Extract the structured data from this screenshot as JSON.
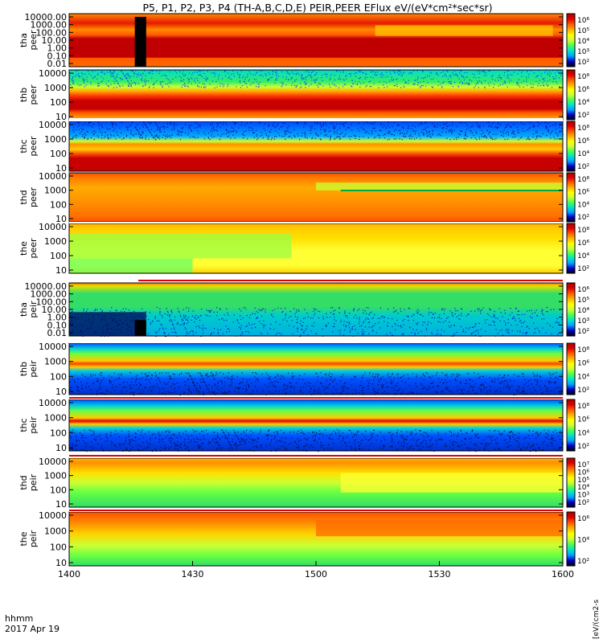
{
  "title": "P5, P1, P2, P3, P4 (TH-A,B,C,D,E) PEIR,PEER EFlux eV/(eV*cm²*sec*sr)",
  "colorbar_label": "[eV/(cm2-s",
  "time_label_1": "hhmm",
  "time_label_2": "2017 Apr 19",
  "chart_data": {
    "type": "heatmap",
    "title": "P5, P1, P2, P3, P4 (TH-A,B,C,D,E) PEIR,PEER EFlux eV/(eV*cm²*sec*sr)",
    "x": {
      "ticks": [
        "1400",
        "1430",
        "1500",
        "1530",
        "1600"
      ],
      "range_minutes": [
        0,
        120
      ]
    },
    "y_scale": "log",
    "colormap": [
      "#000000",
      "#0000cc",
      "#00a0ff",
      "#00e5cc",
      "#4cff4c",
      "#ccff33",
      "#ffff00",
      "#ffb000",
      "#ff5a00",
      "#e00000",
      "#b00000"
    ],
    "panels": [
      {
        "label": [
          "tha",
          "peer"
        ],
        "yticks": [
          "10000.00",
          "1000.00",
          "100.00",
          "10.00",
          "1.00",
          "0.10",
          "0.01"
        ],
        "cbar_ticks": [
          "10⁶",
          "10⁵",
          "10⁴",
          "10³",
          "10²"
        ],
        "bands": [
          [
            "#ff8a00",
            0.0
          ],
          [
            "#e81a00",
            0.18
          ],
          [
            "#ff8a00",
            0.3
          ],
          [
            "#ff5a00",
            0.4
          ],
          [
            "#c00000",
            0.47
          ],
          [
            "#c00000",
            0.82
          ],
          [
            "#ff5a00",
            0.84
          ],
          [
            "#ff6a00",
            1.0
          ]
        ],
        "features": [
          {
            "kind": "gap",
            "x0": 0.133,
            "x1": 0.156,
            "y0": 0.06,
            "y1": 1.0
          },
          {
            "kind": "patch",
            "x0": 0.62,
            "x1": 0.98,
            "y0": 0.22,
            "y1": 0.42,
            "color": "#ffc400"
          }
        ]
      },
      {
        "label": [
          "thb",
          "peer"
        ],
        "yticks": [
          "10000",
          "1000",
          "100",
          "10"
        ],
        "cbar_ticks": [
          "10⁸",
          "10⁶",
          "10⁴",
          "10²"
        ],
        "bands": [
          [
            "#00ddcc",
            0.0
          ],
          [
            "#33ee66",
            0.24
          ],
          [
            "#ccff33",
            0.34
          ],
          [
            "#ffb000",
            0.42
          ],
          [
            "#ff3800",
            0.52
          ],
          [
            "#c80000",
            0.62
          ],
          [
            "#c80000",
            0.78
          ],
          [
            "#ff5a00",
            0.86
          ],
          [
            "#ffb000",
            1.0
          ]
        ],
        "features": [
          {
            "kind": "speckle",
            "y0": 0.0,
            "y1": 0.35,
            "color": "#0040ff"
          }
        ]
      },
      {
        "label": [
          "thc",
          "peer"
        ],
        "yticks": [
          "10000",
          "1000",
          "100",
          "10"
        ],
        "cbar_ticks": [
          "10⁸",
          "10⁶",
          "10⁴",
          "10²"
        ],
        "bands": [
          [
            "#0044ff",
            0.0
          ],
          [
            "#00aaff",
            0.3
          ],
          [
            "#ccff33",
            0.4
          ],
          [
            "#ff9000",
            0.46
          ],
          [
            "#ffcc00",
            0.56
          ],
          [
            "#ff5a00",
            0.64
          ],
          [
            "#c80000",
            0.74
          ],
          [
            "#c80000",
            1.0
          ]
        ],
        "features": [
          {
            "kind": "speckle",
            "y0": 0.0,
            "y1": 0.36,
            "color": "#000088"
          }
        ]
      },
      {
        "label": [
          "thd",
          "peer"
        ],
        "yticks": [
          "10000",
          "1000",
          "100",
          "10"
        ],
        "cbar_ticks": [
          "10⁸",
          "10⁶",
          "10⁴",
          "10²"
        ],
        "bands": [
          [
            "#ff5000",
            0.0
          ],
          [
            "#ff8000",
            0.12
          ],
          [
            "#ffaa00",
            0.3
          ],
          [
            "#ff9000",
            0.6
          ],
          [
            "#ff7000",
            0.88
          ],
          [
            "#ff5000",
            1.0
          ]
        ],
        "features": [
          {
            "kind": "patch",
            "x0": 0.5,
            "x1": 1.0,
            "y0": 0.2,
            "y1": 0.36,
            "color": "#ccff33"
          },
          {
            "kind": "line",
            "x0": 0.55,
            "x1": 1.0,
            "y": 0.36,
            "color": "#00aa44"
          }
        ]
      },
      {
        "label": [
          "the",
          "peer"
        ],
        "yticks": [
          "10000",
          "1000",
          "100",
          "10"
        ],
        "cbar_ticks": [
          "10⁸",
          "10⁶",
          "10⁴",
          "10²"
        ],
        "bands": [
          [
            "#ffb000",
            0.0
          ],
          [
            "#ffcc00",
            0.1
          ],
          [
            "#ffe000",
            0.3
          ],
          [
            "#ffff33",
            0.55
          ],
          [
            "#ffff33",
            0.85
          ],
          [
            "#ffd000",
            1.0
          ]
        ],
        "features": [
          {
            "kind": "patch",
            "x0": 0.0,
            "x1": 0.45,
            "y0": 0.2,
            "y1": 0.7,
            "color": "#99ff44"
          },
          {
            "kind": "patch",
            "x0": 0.0,
            "x1": 0.25,
            "y0": 0.7,
            "y1": 1.0,
            "color": "#66ff66"
          }
        ]
      },
      {
        "label": [
          "tha",
          "peir"
        ],
        "yticks": [
          "10000.00",
          "1000.00",
          "100.00",
          "10.00",
          "1.00",
          "0.10",
          "0.01"
        ],
        "cbar_ticks": [
          "10⁶",
          "10⁵",
          "10⁴",
          "10³",
          "10²"
        ],
        "bands": [
          [
            "#ff7a00",
            0.0
          ],
          [
            "#e0e000",
            0.06
          ],
          [
            "#33dd66",
            0.2
          ],
          [
            "#33dd66",
            0.45
          ],
          [
            "#00cccc",
            0.62
          ],
          [
            "#00b0e0",
            1.0
          ]
        ],
        "features": [
          {
            "kind": "speckle",
            "y0": 0.45,
            "y1": 1.0,
            "color": "#0000cc"
          },
          {
            "kind": "patch",
            "x0": 0.0,
            "x1": 0.156,
            "y0": 0.55,
            "y1": 1.0,
            "color": "#000055"
          },
          {
            "kind": "gap",
            "x0": 0.133,
            "x1": 0.156,
            "y0": 0.7,
            "y1": 1.0
          }
        ]
      },
      {
        "label": [
          "thb",
          "peir"
        ],
        "yticks": [
          "10000",
          "1000",
          "100",
          "10"
        ],
        "cbar_ticks": [
          "10⁸",
          "10⁶",
          "10⁴",
          "10²"
        ],
        "bands": [
          [
            "#0050ff",
            0.0
          ],
          [
            "#00ccdd",
            0.1
          ],
          [
            "#66ff44",
            0.2
          ],
          [
            "#ffcc00",
            0.34
          ],
          [
            "#ff4000",
            0.4
          ],
          [
            "#ffcc00",
            0.46
          ],
          [
            "#00ccdd",
            0.54
          ],
          [
            "#0050ff",
            0.7
          ],
          [
            "#0030cc",
            1.0
          ]
        ],
        "features": [
          {
            "kind": "speckle",
            "y0": 0.56,
            "y1": 1.0,
            "color": "#000033"
          }
        ]
      },
      {
        "label": [
          "thc",
          "peir"
        ],
        "yticks": [
          "10000",
          "1000",
          "100",
          "10"
        ],
        "cbar_ticks": [
          "10⁸",
          "10⁶",
          "10⁴",
          "10²"
        ],
        "bands": [
          [
            "#0050ff",
            0.0
          ],
          [
            "#00ccdd",
            0.12
          ],
          [
            "#66ff44",
            0.22
          ],
          [
            "#ffcc00",
            0.36
          ],
          [
            "#e00000",
            0.42
          ],
          [
            "#ffcc00",
            0.48
          ],
          [
            "#00ccdd",
            0.56
          ],
          [
            "#0050ff",
            0.7
          ],
          [
            "#0030cc",
            1.0
          ]
        ],
        "features": [
          {
            "kind": "speckle",
            "y0": 0.58,
            "y1": 1.0,
            "color": "#000033"
          }
        ]
      },
      {
        "label": [
          "thd",
          "peir"
        ],
        "yticks": [
          "10000",
          "1000",
          "100",
          "10"
        ],
        "cbar_ticks": [
          "10⁷",
          "10⁶",
          "10⁵",
          "10⁴",
          "10³",
          "10²"
        ],
        "bands": [
          [
            "#ffb000",
            0.0
          ],
          [
            "#ff9000",
            0.1
          ],
          [
            "#ffe000",
            0.3
          ],
          [
            "#ccff33",
            0.5
          ],
          [
            "#66ff44",
            0.7
          ],
          [
            "#33dd66",
            1.0
          ]
        ],
        "features": [
          {
            "kind": "patch",
            "x0": 0.55,
            "x1": 1.0,
            "y0": 0.3,
            "y1": 0.7,
            "color": "#ffff33"
          }
        ]
      },
      {
        "label": [
          "the",
          "peir"
        ],
        "yticks": [
          "10000",
          "1000",
          "100",
          "10"
        ],
        "cbar_ticks": [
          "10⁶",
          "10⁴",
          "10²"
        ],
        "bands": [
          [
            "#ff5000",
            0.0
          ],
          [
            "#ff8a00",
            0.2
          ],
          [
            "#ffd000",
            0.4
          ],
          [
            "#ccff33",
            0.62
          ],
          [
            "#66ff44",
            0.82
          ],
          [
            "#33dd66",
            1.0
          ]
        ],
        "features": [
          {
            "kind": "patch",
            "x0": 0.5,
            "x1": 1.0,
            "y0": 0.15,
            "y1": 0.45,
            "color": "#ff6a00"
          }
        ]
      }
    ]
  }
}
